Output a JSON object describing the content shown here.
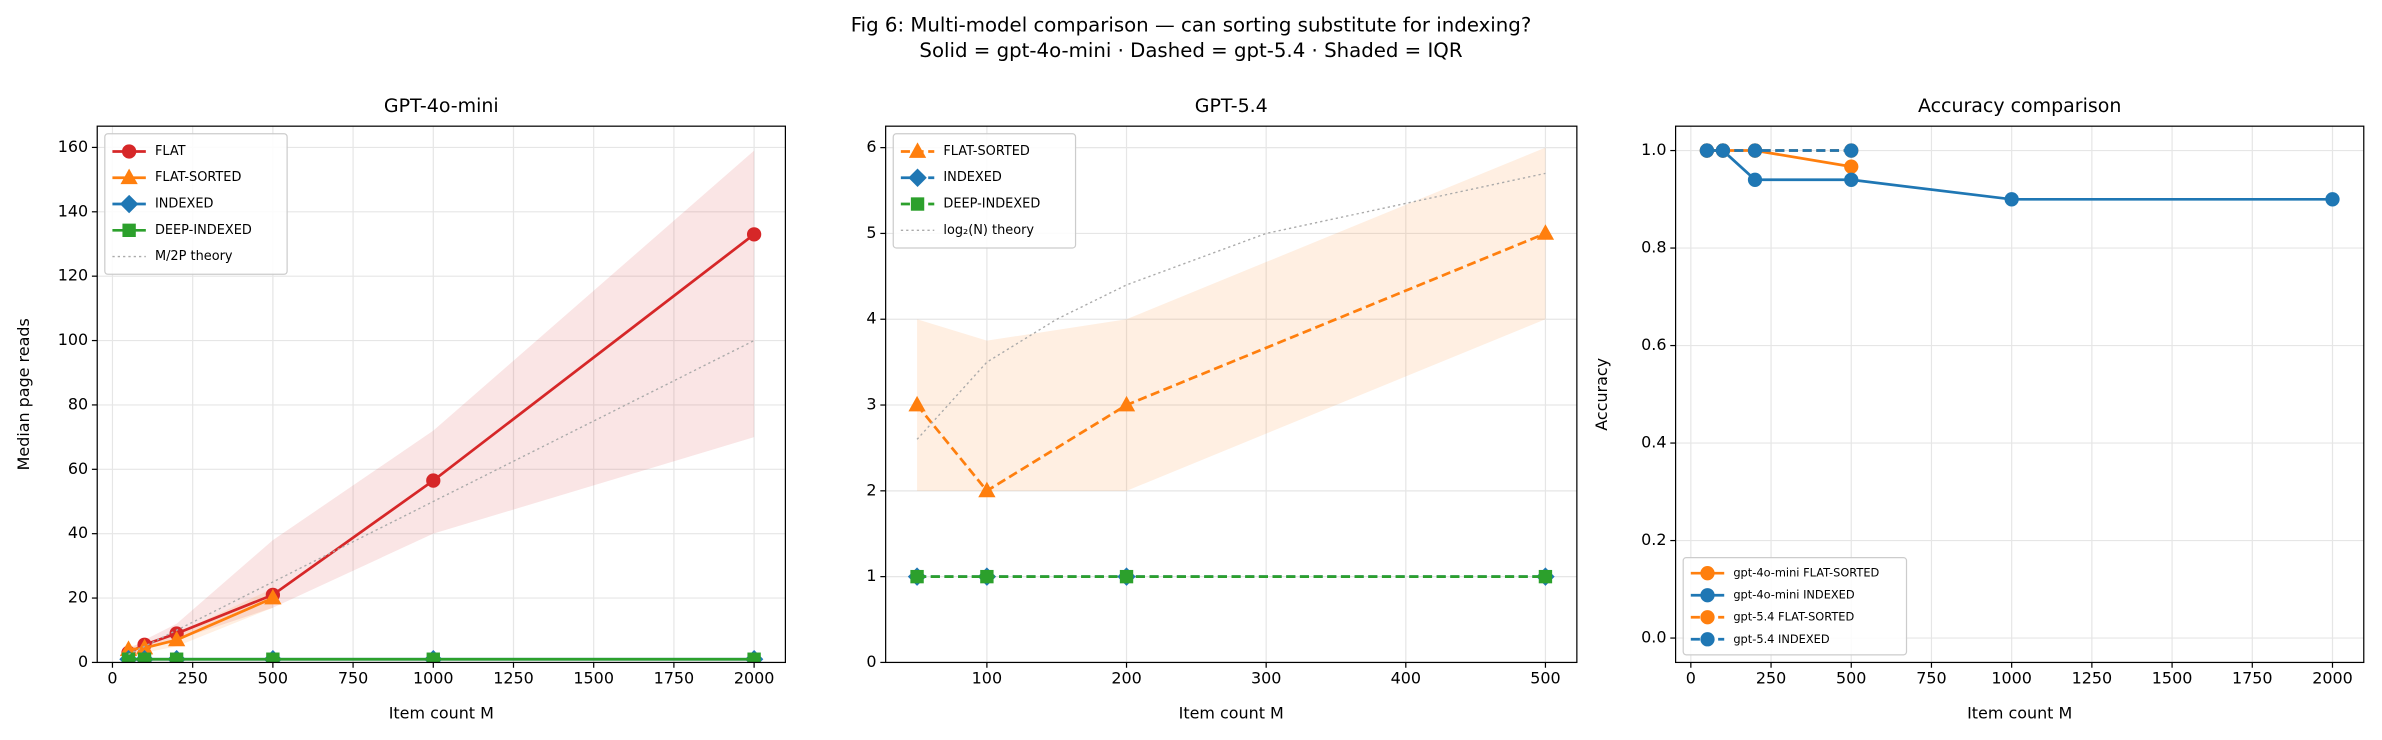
{
  "suptitle": [
    "Fig 6: Multi-model comparison — can sorting substitute for indexing?",
    "Solid = gpt-4o-mini · Dashed = gpt-5.4 · Shaded = IQR"
  ],
  "chart_data": [
    {
      "type": "line",
      "title": "GPT-4o-mini",
      "xlabel": "Item count M",
      "ylabel": "Median page reads",
      "xlim": [
        -47.5,
        2097.5
      ],
      "ylim": [
        0,
        166.6
      ],
      "xticks": [
        0,
        250,
        500,
        750,
        1000,
        1250,
        1500,
        1750,
        2000
      ],
      "yticks": [
        0,
        20,
        40,
        60,
        80,
        100,
        120,
        140,
        160
      ],
      "grid": true,
      "legend": "upper left",
      "series": [
        {
          "name": "FLAT",
          "color": "#d62728",
          "linestyle": "solid",
          "marker": "o",
          "x": [
            50,
            100,
            200,
            500,
            1000,
            2000
          ],
          "values": [
            3,
            5.5,
            9,
            21,
            56.5,
            133
          ],
          "iqr_low": [
            2,
            4,
            7,
            17,
            40,
            70
          ],
          "iqr_high": [
            4,
            7,
            12,
            38,
            72,
            159
          ]
        },
        {
          "name": "FLAT-SORTED",
          "color": "#ff7f0e",
          "linestyle": "solid",
          "marker": "^",
          "x": [
            50,
            100,
            200,
            500
          ],
          "values": [
            4,
            4.5,
            7,
            20
          ],
          "iqr_low": [
            3,
            3,
            5,
            17
          ],
          "iqr_high": [
            5,
            6,
            9,
            23
          ]
        },
        {
          "name": "INDEXED",
          "color": "#1f77b4",
          "linestyle": "solid",
          "marker": "D",
          "x": [
            50,
            100,
            200,
            500,
            1000,
            2000
          ],
          "values": [
            1,
            1,
            1,
            1,
            1,
            1
          ]
        },
        {
          "name": "DEEP-INDEXED",
          "color": "#2ca02c",
          "linestyle": "solid",
          "marker": "s",
          "x": [
            50,
            100,
            200,
            500,
            1000,
            2000
          ],
          "values": [
            1,
            1,
            1,
            1,
            1,
            1
          ]
        },
        {
          "name": "M/2P theory",
          "color": "#aaaaaa",
          "linestyle": "dotted",
          "marker": null,
          "x": [
            50,
            2000
          ],
          "values": [
            2.5,
            100
          ]
        }
      ]
    },
    {
      "type": "line",
      "title": "GPT-5.4",
      "xlabel": "Item count M",
      "xlim": [
        27.5,
        522.5
      ],
      "ylim": [
        0,
        6.25
      ],
      "xticks": [
        100,
        200,
        300,
        400,
        500
      ],
      "yticks": [
        0,
        1,
        2,
        3,
        4,
        5,
        6
      ],
      "grid": true,
      "legend": "upper left",
      "series": [
        {
          "name": "FLAT-SORTED",
          "color": "#ff7f0e",
          "linestyle": "dashed",
          "marker": "^",
          "x": [
            50,
            100,
            200,
            500
          ],
          "values": [
            3,
            2,
            3,
            5
          ],
          "iqr_low": [
            2,
            2,
            2,
            4
          ],
          "iqr_high": [
            4,
            3.75,
            4,
            6
          ]
        },
        {
          "name": "INDEXED",
          "color": "#1f77b4",
          "linestyle": "dashed",
          "marker": "D",
          "x": [
            50,
            100,
            200,
            500
          ],
          "values": [
            1,
            1,
            1,
            1
          ]
        },
        {
          "name": "DEEP-INDEXED",
          "color": "#2ca02c",
          "linestyle": "dashed",
          "marker": "s",
          "x": [
            50,
            100,
            200,
            500
          ],
          "values": [
            1,
            1,
            1,
            1
          ]
        },
        {
          "name": "log₂(N) theory",
          "color": "#aaaaaa",
          "linestyle": "dotted",
          "marker": null,
          "x": [
            50,
            100,
            150,
            200,
            300,
            400,
            500
          ],
          "values": [
            2.6,
            3.5,
            4.0,
            4.4,
            5.0,
            5.35,
            5.7
          ]
        }
      ]
    },
    {
      "type": "line",
      "title": "Accuracy comparison",
      "xlabel": "Item count M",
      "ylabel": "Accuracy",
      "xlim": [
        -47.5,
        2097.5
      ],
      "ylim": [
        -0.05,
        1.05
      ],
      "xticks": [
        0,
        250,
        500,
        750,
        1000,
        1250,
        1500,
        1750,
        2000
      ],
      "yticks": [
        {
          "value": 0,
          "label": "0.0"
        },
        0.2,
        0.4,
        0.6,
        0.8,
        {
          "value": 1,
          "label": "1.0"
        }
      ],
      "grid": true,
      "legend": "lower left",
      "series": [
        {
          "name": "gpt-4o-mini FLAT-SORTED",
          "color": "#ff7f0e",
          "linestyle": "solid",
          "marker": "o",
          "x": [
            50,
            100,
            200,
            500
          ],
          "values": [
            1,
            1,
            1,
            0.967
          ]
        },
        {
          "name": "gpt-4o-mini INDEXED",
          "color": "#1f77b4",
          "linestyle": "solid",
          "marker": "o",
          "x": [
            50,
            100,
            200,
            500,
            1000,
            2000
          ],
          "values": [
            1,
            1,
            0.94,
            0.94,
            0.9,
            0.9
          ]
        },
        {
          "name": "gpt-5.4 FLAT-SORTED",
          "color": "#ff7f0e",
          "linestyle": "dashed",
          "marker": "o",
          "x": [
            50,
            100,
            200,
            500
          ],
          "values": [
            1,
            1,
            1,
            1
          ]
        },
        {
          "name": "gpt-5.4 INDEXED",
          "color": "#1f77b4",
          "linestyle": "dashed",
          "marker": "o",
          "x": [
            50,
            100,
            200,
            500
          ],
          "values": [
            1,
            1,
            1,
            1
          ]
        }
      ]
    }
  ]
}
